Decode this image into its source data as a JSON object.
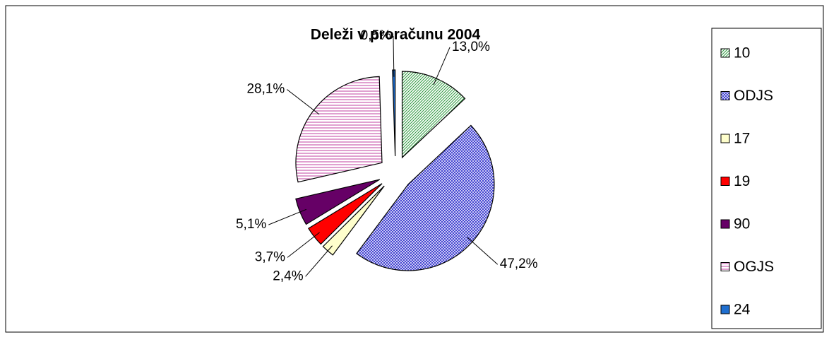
{
  "chart_data": {
    "type": "pie",
    "title": "Deleži v proračunu 2004",
    "categories": [
      "10",
      "ODJS",
      "17",
      "19",
      "90",
      "OGJS",
      "24"
    ],
    "values": [
      13.0,
      47.2,
      2.4,
      3.7,
      5.1,
      28.1,
      0.5
    ],
    "value_labels": [
      "13,0%",
      "47,2%",
      "2,4%",
      "3,7%",
      "5,1%",
      "28,1%",
      "0,5%"
    ],
    "colors": [
      "#2e9a3e",
      "#3a3ad0",
      "#ffffcc",
      "#ff0000",
      "#660066",
      "#c040a0",
      "#1f6fd0"
    ],
    "fill_styles": [
      "diagonal",
      "crosshatch",
      "solid",
      "solid",
      "solid",
      "horizontal",
      "solid"
    ],
    "legend": "right"
  }
}
